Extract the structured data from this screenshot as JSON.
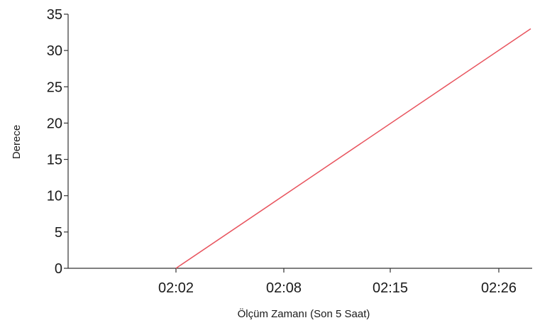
{
  "chart_data": {
    "type": "line",
    "title": "",
    "xlabel": "Ölçüm Zamanı (Son 5 Saat)",
    "ylabel": "Derece",
    "categories": [
      "02:02",
      "02:08",
      "02:15",
      "02:26"
    ],
    "x_tick_labels": [
      "02:02",
      "02:08",
      "02:15",
      "02:26"
    ],
    "y_ticks": [
      0,
      5,
      10,
      15,
      20,
      25,
      30,
      35
    ],
    "ylim": [
      0,
      35
    ],
    "grid": false,
    "series": [
      {
        "color": "#e8545e",
        "points": [
          {
            "x": "02:02",
            "y": 0
          },
          {
            "x": "02:26",
            "y": 33
          }
        ]
      }
    ]
  }
}
